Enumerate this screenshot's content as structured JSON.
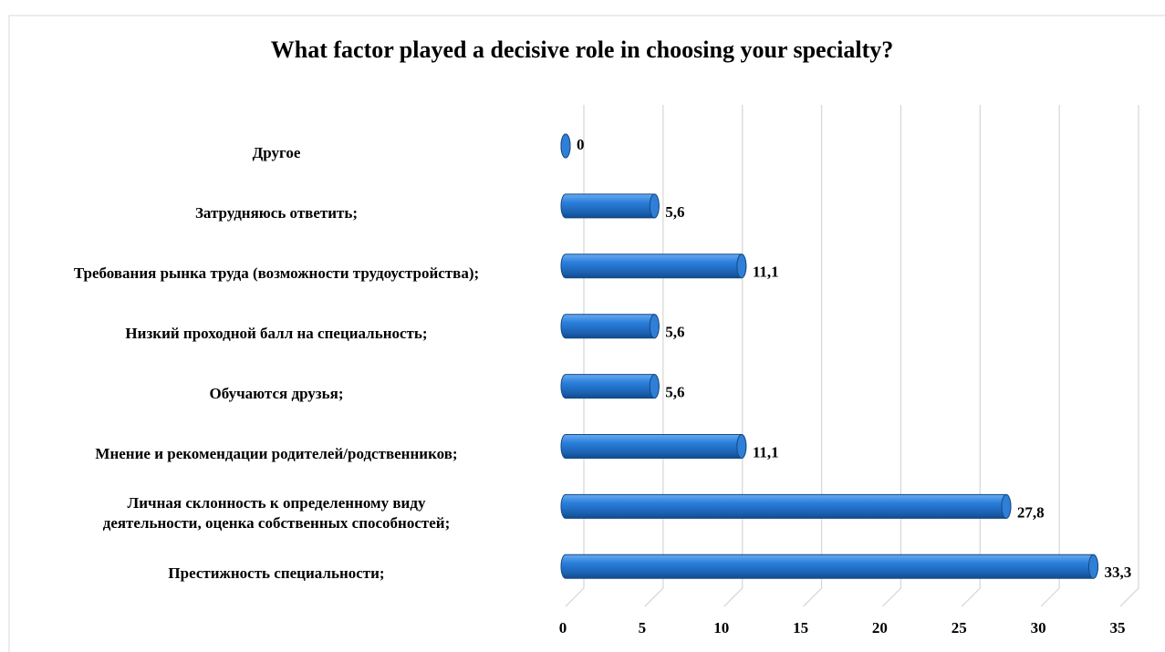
{
  "chart_data": {
    "type": "bar",
    "orientation": "horizontal",
    "title": "What factor played a decisive role in choosing your specialty?",
    "categories": [
      "Другое",
      "Затрудняюсь ответить;",
      "Требования рынка труда (возможности трудоустройства);",
      "Низкий проходной балл на специальность;",
      "Обучаются друзья;",
      "Мнение и рекомендации родителей/родственников;",
      "Личная склонность к определенному виду деятельности, оценка собственных способностей;",
      "Престижность специальности;"
    ],
    "values": [
      0,
      5.6,
      11.1,
      5.6,
      5.6,
      11.1,
      27.8,
      33.3
    ],
    "value_labels": [
      "0",
      "5,6",
      "11,1",
      "5,6",
      "5,6",
      "11,1",
      "27,8",
      "33,3"
    ],
    "color": "#1f6fc5",
    "xlim": [
      0,
      35
    ],
    "xticks": [
      0,
      5,
      10,
      15,
      20,
      25,
      30,
      35
    ],
    "grid": true
  }
}
